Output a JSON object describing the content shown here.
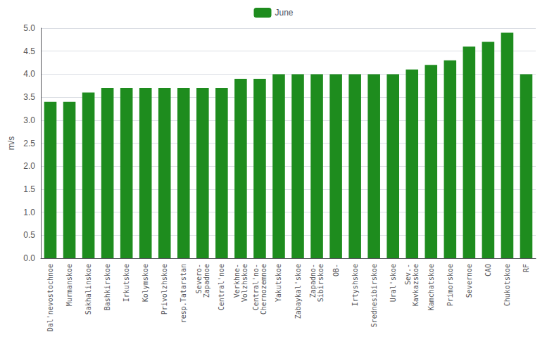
{
  "chart_data": {
    "type": "bar",
    "categories": [
      "Dal'nevostochnoe",
      "Murmanskoe",
      "Sakhalinskoe",
      "Bashkirskoe",
      "Irkutskoe",
      "Kolymskoe",
      "Privolzhskoe",
      "resp.Tatarstan",
      "Severo-\nZapadnoe",
      "Central'noe",
      "Verkhne-\nVolzhskoe",
      "Central'no-\nChernozemnoe",
      "Yakutskoe",
      "Zabaykal'skoe",
      "Zapadno-\nSibirskoe",
      "OB-",
      "Irtyshskoe",
      "Srednesibirskoe",
      "Ural'skoe",
      "Sev.-\nKavkazskoe",
      "Kamchatskoe",
      "Primorskoe",
      "Severnoe",
      "CAO",
      "Chukotskoe",
      "RF"
    ],
    "series": [
      {
        "name": "June",
        "color": "#1e8c1e",
        "values": [
          3.4,
          3.4,
          3.6,
          3.7,
          3.7,
          3.7,
          3.7,
          3.7,
          3.7,
          3.7,
          3.9,
          3.9,
          4.0,
          4.0,
          4.0,
          4.0,
          4.0,
          4.0,
          4.0,
          4.1,
          4.2,
          4.3,
          4.6,
          4.7,
          4.9,
          4.0
        ]
      }
    ],
    "ylabel": "m/s",
    "ylim": [
      0,
      5
    ],
    "yticks": [
      {
        "value": 0,
        "label": "0.0"
      },
      0.5,
      {
        "value": 1.0,
        "label": "1.0"
      },
      1.5,
      {
        "value": 2.0,
        "label": "2.0"
      },
      2.5,
      {
        "value": 3.0,
        "label": "3.0"
      },
      3.5,
      {
        "value": 4.0,
        "label": "4.0"
      },
      4.5,
      {
        "value": 5.0,
        "label": "5.0"
      }
    ],
    "grid": true,
    "legend": "top"
  }
}
